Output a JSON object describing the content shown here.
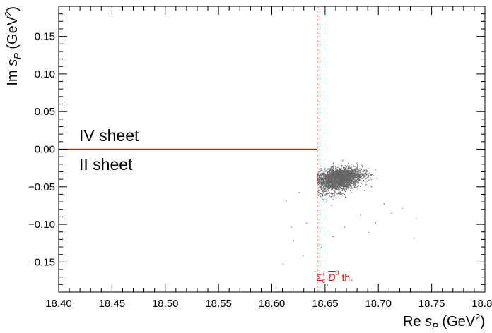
{
  "chart_data": {
    "type": "scatter",
    "xlabel": {
      "main": "Re ",
      "var": "s",
      "sub": "P",
      "unit": " (GeV",
      "sup": "2",
      "close": ")"
    },
    "ylabel": {
      "main": "Im ",
      "var": "s",
      "sub": "P",
      "unit": " (GeV",
      "sup": "2",
      "close": ")"
    },
    "xlim": [
      18.4,
      18.8
    ],
    "ylim": [
      -0.19,
      0.19
    ],
    "x_ticks": [
      "18.40",
      "18.45",
      "18.50",
      "18.55",
      "18.60",
      "18.65",
      "18.70",
      "18.75",
      "18.80"
    ],
    "x_tick_values": [
      18.4,
      18.45,
      18.5,
      18.55,
      18.6,
      18.65,
      18.7,
      18.75,
      18.8
    ],
    "y_ticks": [
      "0.15",
      "0.10",
      "0.05",
      "0.00",
      "−0.05",
      "−0.10",
      "−0.15"
    ],
    "y_tick_values": [
      0.15,
      0.1,
      0.05,
      0.0,
      -0.05,
      -0.1,
      -0.15
    ],
    "threshold": {
      "x": 18.6425,
      "label_sym": "Σ",
      "label_sub": "c",
      "label_sup": "+",
      "label_meson": "D",
      "label_meson_sup": "0",
      "label_suffix": " th."
    },
    "cut_line": {
      "x_start": 18.4,
      "x_end": 18.6425,
      "y": 0.0
    },
    "sheet_labels": {
      "upper": "IV sheet",
      "lower": "II sheet"
    },
    "point_cloud": {
      "center_x": 18.662,
      "center_y": -0.038,
      "sigma_x": 0.011,
      "sigma_y": 0.0075,
      "count": 2800,
      "outliers": [
        [
          18.735,
          -0.092
        ],
        [
          18.733,
          -0.118
        ],
        [
          18.712,
          -0.085
        ],
        [
          18.705,
          -0.072
        ],
        [
          18.618,
          -0.103
        ],
        [
          18.62,
          -0.121
        ],
        [
          18.632,
          -0.098
        ],
        [
          18.629,
          -0.141
        ],
        [
          18.64,
          -0.162
        ],
        [
          18.652,
          -0.18
        ],
        [
          18.668,
          -0.103
        ],
        [
          18.69,
          -0.11
        ],
        [
          18.683,
          -0.087
        ],
        [
          18.625,
          -0.057
        ],
        [
          18.613,
          -0.068
        ],
        [
          18.61,
          -0.152
        ],
        [
          18.646,
          -0.13
        ],
        [
          18.657,
          -0.116
        ],
        [
          18.697,
          -0.097
        ],
        [
          18.722,
          -0.078
        ]
      ]
    },
    "colors": {
      "points": "#666666",
      "threshold": "#e00000",
      "cut": "#e00000"
    }
  }
}
